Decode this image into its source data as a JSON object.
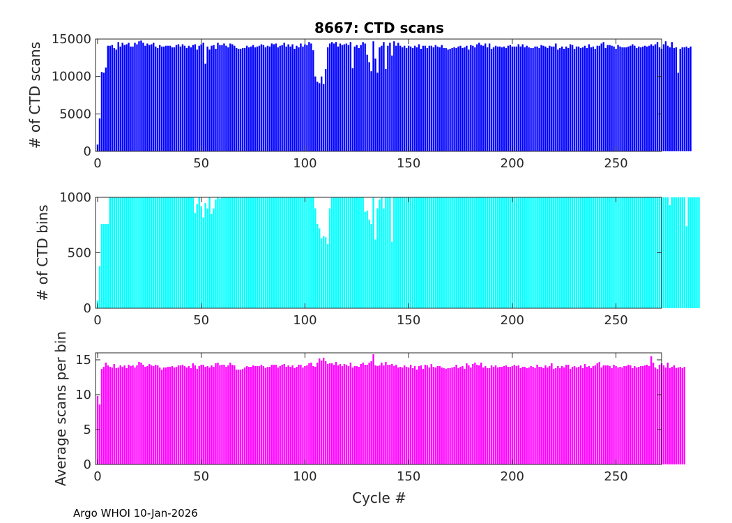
{
  "footer": "Argo WHOI 10-Jan-2026",
  "chart_data": [
    {
      "type": "bar",
      "name": "ctd-scans",
      "title": "8667: CTD scans",
      "xlabel": "",
      "ylabel": "# of CTD scans",
      "xlim": [
        -1,
        272
      ],
      "ylim": [
        0,
        15000
      ],
      "xticks": [
        0,
        50,
        100,
        150,
        200,
        250
      ],
      "yticks": [
        0,
        5000,
        10000,
        15000
      ],
      "color": "#0000ff",
      "x_start": 0,
      "values": [
        900,
        4400,
        10600,
        10500,
        11200,
        14100,
        14100,
        14200,
        13800,
        13600,
        14600,
        14000,
        14500,
        14200,
        14300,
        14500,
        14000,
        14000,
        14500,
        14300,
        14700,
        14800,
        14500,
        14100,
        14400,
        14200,
        14300,
        14500,
        14000,
        13800,
        14200,
        14000,
        14000,
        14100,
        14100,
        14100,
        13900,
        13900,
        14200,
        14300,
        14000,
        14300,
        14100,
        13800,
        14100,
        13900,
        14200,
        14300,
        13600,
        14100,
        14300,
        14500,
        11700,
        14000,
        13600,
        14100,
        14200,
        13700,
        14500,
        14200,
        14200,
        14400,
        14100,
        13900,
        14400,
        14300,
        14100,
        13800,
        13700,
        13700,
        13800,
        13800,
        14100,
        13900,
        14000,
        14200,
        13900,
        14000,
        14100,
        14300,
        14200,
        13900,
        14100,
        14000,
        14400,
        14300,
        14400,
        13900,
        14100,
        14200,
        14500,
        14000,
        14300,
        14000,
        14300,
        13700,
        14100,
        13900,
        14400,
        14000,
        14300,
        14200,
        14600,
        14400,
        13500,
        10000,
        9300,
        9100,
        10000,
        9000,
        11000,
        13900,
        14400,
        14600,
        14400,
        14600,
        14000,
        14400,
        14200,
        14300,
        14400,
        14200,
        14600,
        11100,
        14000,
        14200,
        13800,
        14200,
        14600,
        14400,
        12900,
        11900,
        10700,
        14700,
        12400,
        10500,
        13900,
        14100,
        14600,
        11000,
        14100,
        14500,
        12800,
        14700,
        14100,
        14500,
        14100,
        13900,
        14100,
        13800,
        14100,
        14000,
        13800,
        14100,
        13900,
        14300,
        13700,
        14100,
        14100,
        13800,
        14100,
        14100,
        13900,
        14200,
        14000,
        13900,
        14200,
        13800,
        13800,
        13600,
        13700,
        13800,
        13900,
        13800,
        14000,
        14100,
        13800,
        13900,
        14100,
        13600,
        14200,
        14100,
        13900,
        14300,
        14500,
        14200,
        14100,
        14400,
        13900,
        14400,
        13700,
        13900,
        14100,
        14000,
        14000,
        13900,
        14000,
        13800,
        14100,
        14200,
        14000,
        14000,
        14000,
        14300,
        14000,
        14300,
        13900,
        14100,
        13900,
        13800,
        13800,
        14000,
        14000,
        13800,
        14200,
        14100,
        14000,
        13800,
        14100,
        14000,
        14000,
        14400,
        13600,
        13800,
        14000,
        13700,
        14000,
        13800,
        14300,
        14200,
        13700,
        14000,
        14000,
        13800,
        13900,
        14100,
        13800,
        14300,
        13900,
        14000,
        13700,
        14100,
        14100,
        14400,
        14600,
        13800,
        14200,
        14200,
        14100,
        14000,
        13700,
        14200,
        14000,
        13900,
        13900,
        13900,
        14000,
        14100,
        14300,
        14100,
        13800,
        14000,
        13900,
        14000,
        14100,
        14000,
        14100,
        14300,
        14100,
        14300,
        14600,
        13900,
        13700,
        14300,
        14700,
        14100,
        13900,
        14600,
        13800,
        13900,
        10500,
        13700,
        13900,
        13900,
        14000,
        13800,
        14000
      ]
    },
    {
      "type": "bar",
      "name": "ctd-bins",
      "title": "",
      "xlabel": "",
      "ylabel": "# of CTD bins",
      "xlim": [
        -1,
        272
      ],
      "ylim": [
        0,
        1000
      ],
      "xticks": [
        0,
        50,
        100,
        150,
        200,
        250
      ],
      "yticks": [
        0,
        500,
        1000
      ],
      "color": "#00ffff",
      "x_start": 0,
      "values": [
        70,
        380,
        760,
        760,
        760,
        760,
        1000,
        1000,
        1000,
        1000,
        1000,
        1000,
        1000,
        1000,
        1000,
        1000,
        1000,
        1000,
        1000,
        1000,
        1000,
        1000,
        1000,
        1000,
        1000,
        1000,
        1000,
        1000,
        1000,
        1000,
        1000,
        1000,
        1000,
        1000,
        1000,
        1000,
        1000,
        1000,
        1000,
        1000,
        1000,
        1000,
        1000,
        1000,
        1000,
        1000,
        1000,
        860,
        940,
        1000,
        920,
        820,
        950,
        900,
        1000,
        850,
        900,
        980,
        1000,
        990,
        1000,
        1000,
        1000,
        1000,
        1000,
        1000,
        1000,
        1000,
        1000,
        1000,
        1000,
        1000,
        1000,
        1000,
        1000,
        1000,
        1000,
        1000,
        1000,
        1000,
        1000,
        1000,
        1000,
        1000,
        1000,
        1000,
        1000,
        1000,
        1000,
        1000,
        1000,
        1000,
        1000,
        1000,
        1000,
        1000,
        1000,
        1000,
        1000,
        1000,
        1000,
        1000,
        1000,
        1000,
        1000,
        900,
        760,
        720,
        630,
        650,
        640,
        580,
        900,
        1000,
        1000,
        1000,
        1000,
        1000,
        1000,
        1000,
        1000,
        1000,
        1000,
        1000,
        1000,
        1000,
        1000,
        1000,
        1000,
        870,
        880,
        800,
        760,
        1000,
        620,
        900,
        980,
        1000,
        900,
        1000,
        1000,
        1000,
        600,
        1000,
        1000,
        1000,
        1000,
        1000,
        1000,
        1000,
        1000,
        1000,
        1000,
        1000,
        1000,
        1000,
        1000,
        1000,
        1000,
        1000,
        1000,
        1000,
        1000,
        1000,
        1000,
        1000,
        1000,
        1000,
        1000,
        1000,
        1000,
        1000,
        1000,
        1000,
        1000,
        1000,
        1000,
        1000,
        1000,
        1000,
        1000,
        1000,
        1000,
        1000,
        1000,
        1000,
        1000,
        1000,
        1000,
        1000,
        1000,
        1000,
        1000,
        1000,
        1000,
        1000,
        1000,
        1000,
        1000,
        1000,
        1000,
        1000,
        1000,
        1000,
        1000,
        1000,
        1000,
        1000,
        1000,
        1000,
        1000,
        1000,
        1000,
        1000,
        1000,
        1000,
        1000,
        1000,
        1000,
        1000,
        1000,
        1000,
        1000,
        1000,
        1000,
        1000,
        1000,
        1000,
        1000,
        1000,
        1000,
        1000,
        1000,
        1000,
        1000,
        1000,
        1000,
        1000,
        1000,
        1000,
        1000,
        1000,
        1000,
        1000,
        1000,
        1000,
        1000,
        1000,
        1000,
        1000,
        1000,
        1000,
        1000,
        1000,
        1000,
        1000,
        1000,
        1000,
        1000,
        1000,
        1000,
        1000,
        1000,
        1000,
        1000,
        1000,
        1000,
        1000,
        1000,
        1000,
        1000,
        1000,
        1000,
        1000,
        1000,
        1000,
        930,
        1000,
        1000,
        1000,
        1000,
        1000,
        1000,
        1000,
        740,
        1000,
        1000,
        1000,
        1000,
        1000,
        1000
      ]
    },
    {
      "type": "bar",
      "name": "avg-scans-per-bin",
      "title": "",
      "xlabel": "Cycle #",
      "ylabel": "Average scans per bin",
      "xlim": [
        -1,
        272
      ],
      "ylim": [
        0,
        16
      ],
      "xticks": [
        0,
        50,
        100,
        150,
        200,
        250
      ],
      "yticks": [
        0,
        5,
        10,
        15
      ],
      "color": "#ff00ff",
      "x_start": 0,
      "values": [
        9.8,
        8.6,
        13.7,
        14.0,
        14.6,
        14.2,
        14.0,
        13.9,
        14.4,
        13.8,
        13.9,
        14.2,
        14.0,
        14.2,
        13.8,
        14.3,
        14.1,
        14.2,
        13.9,
        14.2,
        14.7,
        14.6,
        14.3,
        14.0,
        14.1,
        14.4,
        14.2,
        14.1,
        14.3,
        14.2,
        13.9,
        13.6,
        13.9,
        13.9,
        14.0,
        14.0,
        14.1,
        13.9,
        14.0,
        14.2,
        14.2,
        14.3,
        14.1,
        13.9,
        14.1,
        13.8,
        14.5,
        14.2,
        13.7,
        14.1,
        14.3,
        14.3,
        14.0,
        14.1,
        13.9,
        14.2,
        14.0,
        14.5,
        14.6,
        14.2,
        14.3,
        14.3,
        14.0,
        14.2,
        14.6,
        14.3,
        14.2,
        13.6,
        13.6,
        13.6,
        13.7,
        13.9,
        14.1,
        14.0,
        14.0,
        14.2,
        14.1,
        14.1,
        14.1,
        14.3,
        14.1,
        13.8,
        14.0,
        14.0,
        14.3,
        14.3,
        14.3,
        13.9,
        14.1,
        14.3,
        14.4,
        14.0,
        14.2,
        14.0,
        14.2,
        13.8,
        14.0,
        14.3,
        14.3,
        13.9,
        14.1,
        14.2,
        14.5,
        14.6,
        14.1,
        14.0,
        14.6,
        15.2,
        14.9,
        15.3,
        14.8,
        14.4,
        14.5,
        14.5,
        14.3,
        14.7,
        14.2,
        14.4,
        14.1,
        14.4,
        14.3,
        14.1,
        14.6,
        13.9,
        14.1,
        14.1,
        14.0,
        14.4,
        14.6,
        14.3,
        14.3,
        14.6,
        14.8,
        15.8,
        14.2,
        14.1,
        14.2,
        14.6,
        14.2,
        14.7,
        14.3,
        14.3,
        14.4,
        14.1,
        14.3,
        13.9,
        14.0,
        13.9,
        14.2,
        14.0,
        13.9,
        14.3,
        13.8,
        14.1,
        13.6,
        14.1,
        14.2,
        13.7,
        14.3,
        14.2,
        13.9,
        14.4,
        14.0,
        13.9,
        14.1,
        14.1,
        13.9,
        13.8,
        13.7,
        13.8,
        13.8,
        13.9,
        14.0,
        14.3,
        13.8,
        14.0,
        14.1,
        13.7,
        14.5,
        14.2,
        13.9,
        14.4,
        14.6,
        14.3,
        14.2,
        14.6,
        13.9,
        14.1,
        13.8,
        13.8,
        14.2,
        14.0,
        14.2,
        13.9,
        14.0,
        14.0,
        14.1,
        14.2,
        14.0,
        14.0,
        14.1,
        14.3,
        14.1,
        14.2,
        13.8,
        14.0,
        14.0,
        13.8,
        13.9,
        14.1,
        14.0,
        13.8,
        14.3,
        14.0,
        14.0,
        13.8,
        14.2,
        13.9,
        14.1,
        14.5,
        13.7,
        13.8,
        14.1,
        13.8,
        14.1,
        13.9,
        14.3,
        14.3,
        13.7,
        14.0,
        14.1,
        13.9,
        14.0,
        14.2,
        13.8,
        14.4,
        14.0,
        14.1,
        13.8,
        14.1,
        14.2,
        14.5,
        14.7,
        13.9,
        14.2,
        14.2,
        14.2,
        14.1,
        13.8,
        14.3,
        14.1,
        13.9,
        14.0,
        13.9,
        14.1,
        14.1,
        14.3,
        14.2,
        13.8,
        14.1,
        13.9,
        14.0,
        14.1,
        14.1,
        14.2,
        14.3,
        14.1,
        15.5,
        14.6,
        13.9,
        13.7,
        14.3,
        14.5,
        14.2,
        13.9,
        14.6,
        13.8,
        14.0,
        14.2,
        13.8,
        13.9,
        14.0,
        13.8,
        14.0
      ]
    }
  ]
}
